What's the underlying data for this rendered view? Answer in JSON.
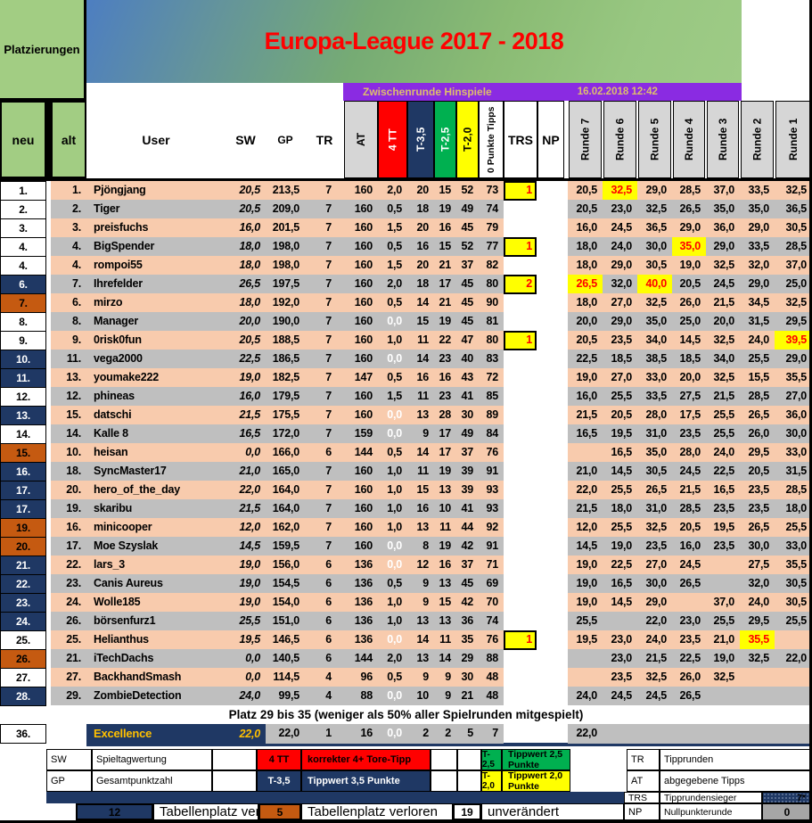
{
  "header": {
    "corner_label": "Platzierungen",
    "title": "Europa-League 2017 - 2018",
    "round_label": "Zwischenrunde Hinspiele",
    "timestamp": "16.02.2018 12:42"
  },
  "columns": {
    "neu": "neu",
    "alt": "alt",
    "user": "User",
    "sw": "SW",
    "gp": "GP",
    "tr": "TR",
    "at": "AT",
    "tt4": "4 TT",
    "t35": "T-3,5",
    "t25": "T-2,5",
    "t20": "T-2,0",
    "p0": "0 Punkte Tipps",
    "trs": "TRS",
    "np": "NP",
    "runden": [
      "Runde 7",
      "Runde 6",
      "Runde 5",
      "Runde 4",
      "Runde 3",
      "Runde 2",
      "Runde 1"
    ]
  },
  "table": {
    "rows": [
      {
        "neu": "1.",
        "move": "same",
        "alt": "1.",
        "user": "Pjöngjang",
        "sw": "20,5",
        "gp": "213,5",
        "tr": "7",
        "at": "160",
        "tt4": "2,0",
        "tt4_white": false,
        "t35": "20",
        "t25": "15",
        "t20": "52",
        "p0": "73",
        "trs": "1",
        "runden": [
          "20,5",
          "32,5",
          "29,0",
          "28,5",
          "37,0",
          "33,5",
          "32,5"
        ],
        "hl": [
          1
        ]
      },
      {
        "neu": "2.",
        "move": "same",
        "alt": "2.",
        "user": "Tiger",
        "sw": "20,5",
        "gp": "209,0",
        "tr": "7",
        "at": "160",
        "tt4": "0,5",
        "tt4_white": false,
        "t35": "18",
        "t25": "19",
        "t20": "49",
        "p0": "74",
        "trs": "",
        "runden": [
          "20,5",
          "23,0",
          "32,5",
          "26,5",
          "35,0",
          "35,0",
          "36,5"
        ],
        "hl": []
      },
      {
        "neu": "3.",
        "move": "same",
        "alt": "3.",
        "user": "preisfuchs",
        "sw": "16,0",
        "gp": "201,5",
        "tr": "7",
        "at": "160",
        "tt4": "1,5",
        "tt4_white": false,
        "t35": "20",
        "t25": "16",
        "t20": "45",
        "p0": "79",
        "trs": "",
        "runden": [
          "16,0",
          "24,5",
          "36,5",
          "29,0",
          "36,0",
          "29,0",
          "30,5"
        ],
        "hl": []
      },
      {
        "neu": "4.",
        "move": "same",
        "alt": "4.",
        "user": "BigSpender",
        "sw": "18,0",
        "gp": "198,0",
        "tr": "7",
        "at": "160",
        "tt4": "0,5",
        "tt4_white": false,
        "t35": "16",
        "t25": "15",
        "t20": "52",
        "p0": "77",
        "trs": "1",
        "runden": [
          "18,0",
          "24,0",
          "30,0",
          "35,0",
          "29,0",
          "33,5",
          "28,5"
        ],
        "hl": [
          3
        ]
      },
      {
        "neu": "4.",
        "move": "same",
        "alt": "4.",
        "user": "rompoi55",
        "sw": "18,0",
        "gp": "198,0",
        "tr": "7",
        "at": "160",
        "tt4": "1,5",
        "tt4_white": false,
        "t35": "20",
        "t25": "21",
        "t20": "37",
        "p0": "82",
        "trs": "",
        "runden": [
          "18,0",
          "29,0",
          "30,5",
          "19,0",
          "32,5",
          "32,0",
          "37,0"
        ],
        "hl": []
      },
      {
        "neu": "6.",
        "move": "up",
        "alt": "7.",
        "user": "Ihrefelder",
        "sw": "26,5",
        "gp": "197,5",
        "tr": "7",
        "at": "160",
        "tt4": "2,0",
        "tt4_white": false,
        "t35": "18",
        "t25": "17",
        "t20": "45",
        "p0": "80",
        "trs": "2",
        "runden": [
          "26,5",
          "32,0",
          "40,0",
          "20,5",
          "24,5",
          "29,0",
          "25,0"
        ],
        "hl": [
          0,
          2
        ]
      },
      {
        "neu": "7.",
        "move": "down",
        "alt": "6.",
        "user": "mirzo",
        "sw": "18,0",
        "gp": "192,0",
        "tr": "7",
        "at": "160",
        "tt4": "0,5",
        "tt4_white": false,
        "t35": "14",
        "t25": "21",
        "t20": "45",
        "p0": "90",
        "trs": "",
        "runden": [
          "18,0",
          "27,0",
          "32,5",
          "26,0",
          "21,5",
          "34,5",
          "32,5"
        ],
        "hl": []
      },
      {
        "neu": "8.",
        "move": "same",
        "alt": "8.",
        "user": "Manager",
        "sw": "20,0",
        "gp": "190,0",
        "tr": "7",
        "at": "160",
        "tt4": "0,0",
        "tt4_white": true,
        "t35": "15",
        "t25": "19",
        "t20": "45",
        "p0": "81",
        "trs": "",
        "runden": [
          "20,0",
          "29,0",
          "35,0",
          "25,0",
          "20,0",
          "31,5",
          "29,5"
        ],
        "hl": []
      },
      {
        "neu": "9.",
        "move": "same",
        "alt": "9.",
        "user": "0risk0fun",
        "sw": "20,5",
        "gp": "188,5",
        "tr": "7",
        "at": "160",
        "tt4": "1,0",
        "tt4_white": false,
        "t35": "11",
        "t25": "22",
        "t20": "47",
        "p0": "80",
        "trs": "1",
        "runden": [
          "20,5",
          "23,5",
          "34,0",
          "14,5",
          "32,5",
          "24,0",
          "39,5"
        ],
        "hl": [
          6
        ]
      },
      {
        "neu": "10.",
        "move": "up",
        "alt": "11.",
        "user": "vega2000",
        "sw": "22,5",
        "gp": "186,5",
        "tr": "7",
        "at": "160",
        "tt4": "0,0",
        "tt4_white": true,
        "t35": "14",
        "t25": "23",
        "t20": "40",
        "p0": "83",
        "trs": "",
        "runden": [
          "22,5",
          "18,5",
          "38,5",
          "18,5",
          "34,0",
          "25,5",
          "29,0"
        ],
        "hl": []
      },
      {
        "neu": "11.",
        "move": "up",
        "alt": "13.",
        "user": "youmake222",
        "sw": "19,0",
        "gp": "182,5",
        "tr": "7",
        "at": "147",
        "tt4": "0,5",
        "tt4_white": false,
        "t35": "16",
        "t25": "16",
        "t20": "43",
        "p0": "72",
        "trs": "",
        "runden": [
          "19,0",
          "27,0",
          "33,0",
          "20,0",
          "32,5",
          "15,5",
          "35,5"
        ],
        "hl": []
      },
      {
        "neu": "12.",
        "move": "same",
        "alt": "12.",
        "user": "phineas",
        "sw": "16,0",
        "gp": "179,5",
        "tr": "7",
        "at": "160",
        "tt4": "1,5",
        "tt4_white": false,
        "t35": "11",
        "t25": "23",
        "t20": "41",
        "p0": "85",
        "trs": "",
        "runden": [
          "16,0",
          "25,5",
          "33,5",
          "27,5",
          "21,5",
          "28,5",
          "27,0"
        ],
        "hl": []
      },
      {
        "neu": "13.",
        "move": "up",
        "alt": "15.",
        "user": "datschi",
        "sw": "21,5",
        "gp": "175,5",
        "tr": "7",
        "at": "160",
        "tt4": "0,0",
        "tt4_white": true,
        "t35": "13",
        "t25": "28",
        "t20": "30",
        "p0": "89",
        "trs": "",
        "runden": [
          "21,5",
          "20,5",
          "28,0",
          "17,5",
          "25,5",
          "26,5",
          "36,0"
        ],
        "hl": []
      },
      {
        "neu": "14.",
        "move": "same",
        "alt": "14.",
        "user": "Kalle 8",
        "sw": "16,5",
        "gp": "172,0",
        "tr": "7",
        "at": "159",
        "tt4": "0,0",
        "tt4_white": true,
        "t35": "9",
        "t25": "17",
        "t20": "49",
        "p0": "84",
        "trs": "",
        "runden": [
          "16,5",
          "19,5",
          "31,0",
          "23,5",
          "25,5",
          "26,0",
          "30,0"
        ],
        "hl": []
      },
      {
        "neu": "15.",
        "move": "down",
        "alt": "10.",
        "user": "heisan",
        "sw": "0,0",
        "gp": "166,0",
        "tr": "6",
        "at": "144",
        "tt4": "0,5",
        "tt4_white": false,
        "t35": "14",
        "t25": "17",
        "t20": "37",
        "p0": "76",
        "trs": "",
        "runden": [
          "",
          "16,5",
          "35,0",
          "28,0",
          "24,0",
          "29,5",
          "33,0"
        ],
        "hl": []
      },
      {
        "neu": "16.",
        "move": "up",
        "alt": "18.",
        "user": "SyncMaster17",
        "sw": "21,0",
        "gp": "165,0",
        "tr": "7",
        "at": "160",
        "tt4": "1,0",
        "tt4_white": false,
        "t35": "11",
        "t25": "19",
        "t20": "39",
        "p0": "91",
        "trs": "",
        "runden": [
          "21,0",
          "14,5",
          "30,5",
          "24,5",
          "22,5",
          "20,5",
          "31,5"
        ],
        "hl": []
      },
      {
        "neu": "17.",
        "move": "up",
        "alt": "20.",
        "user": "hero_of_the_day",
        "sw": "22,0",
        "gp": "164,0",
        "tr": "7",
        "at": "160",
        "tt4": "1,0",
        "tt4_white": false,
        "t35": "15",
        "t25": "13",
        "t20": "39",
        "p0": "93",
        "trs": "",
        "runden": [
          "22,0",
          "25,5",
          "26,5",
          "21,5",
          "16,5",
          "23,5",
          "28,5"
        ],
        "hl": []
      },
      {
        "neu": "17.",
        "move": "up",
        "alt": "19.",
        "user": "skaribu",
        "sw": "21,5",
        "gp": "164,0",
        "tr": "7",
        "at": "160",
        "tt4": "1,0",
        "tt4_white": false,
        "t35": "16",
        "t25": "10",
        "t20": "41",
        "p0": "93",
        "trs": "",
        "runden": [
          "21,5",
          "18,0",
          "31,0",
          "28,5",
          "23,5",
          "23,5",
          "18,0"
        ],
        "hl": []
      },
      {
        "neu": "19.",
        "move": "down",
        "alt": "16.",
        "user": "minicooper",
        "sw": "12,0",
        "gp": "162,0",
        "tr": "7",
        "at": "160",
        "tt4": "1,0",
        "tt4_white": false,
        "t35": "13",
        "t25": "11",
        "t20": "44",
        "p0": "92",
        "trs": "",
        "runden": [
          "12,0",
          "25,5",
          "32,5",
          "20,5",
          "19,5",
          "26,5",
          "25,5"
        ],
        "hl": []
      },
      {
        "neu": "20.",
        "move": "down",
        "alt": "17.",
        "user": "Moe Szyslak",
        "sw": "14,5",
        "gp": "159,5",
        "tr": "7",
        "at": "160",
        "tt4": "0,0",
        "tt4_white": true,
        "t35": "8",
        "t25": "19",
        "t20": "42",
        "p0": "91",
        "trs": "",
        "runden": [
          "14,5",
          "19,0",
          "23,5",
          "16,0",
          "23,5",
          "30,0",
          "33,0"
        ],
        "hl": []
      },
      {
        "neu": "21.",
        "move": "up",
        "alt": "22.",
        "user": "lars_3",
        "sw": "19,0",
        "gp": "156,0",
        "tr": "6",
        "at": "136",
        "tt4": "0,0",
        "tt4_white": true,
        "t35": "12",
        "t25": "16",
        "t20": "37",
        "p0": "71",
        "trs": "",
        "runden": [
          "19,0",
          "22,5",
          "27,0",
          "24,5",
          "",
          "27,5",
          "35,5"
        ],
        "hl": []
      },
      {
        "neu": "22.",
        "move": "up",
        "alt": "23.",
        "user": "Canis Aureus",
        "sw": "19,0",
        "gp": "154,5",
        "tr": "6",
        "at": "136",
        "tt4": "0,5",
        "tt4_white": false,
        "t35": "9",
        "t25": "13",
        "t20": "45",
        "p0": "69",
        "trs": "",
        "runden": [
          "19,0",
          "16,5",
          "30,0",
          "26,5",
          "",
          "32,0",
          "30,5"
        ],
        "hl": []
      },
      {
        "neu": "23.",
        "move": "up",
        "alt": "24.",
        "user": "Wolle185",
        "sw": "19,0",
        "gp": "154,0",
        "tr": "6",
        "at": "136",
        "tt4": "1,0",
        "tt4_white": false,
        "t35": "9",
        "t25": "15",
        "t20": "42",
        "p0": "70",
        "trs": "",
        "runden": [
          "19,0",
          "14,5",
          "29,0",
          "",
          "37,0",
          "24,0",
          "30,5"
        ],
        "hl": []
      },
      {
        "neu": "24.",
        "move": "up",
        "alt": "26.",
        "user": "börsenfurz1",
        "sw": "25,5",
        "gp": "151,0",
        "tr": "6",
        "at": "136",
        "tt4": "1,0",
        "tt4_white": false,
        "t35": "13",
        "t25": "13",
        "t20": "36",
        "p0": "74",
        "trs": "",
        "runden": [
          "25,5",
          "",
          "22,0",
          "23,0",
          "25,5",
          "29,5",
          "25,5"
        ],
        "hl": []
      },
      {
        "neu": "25.",
        "move": "same",
        "alt": "25.",
        "user": "Helianthus",
        "sw": "19,5",
        "gp": "146,5",
        "tr": "6",
        "at": "136",
        "tt4": "0,0",
        "tt4_white": true,
        "t35": "14",
        "t25": "11",
        "t20": "35",
        "p0": "76",
        "trs": "1",
        "runden": [
          "19,5",
          "23,0",
          "24,0",
          "23,5",
          "21,0",
          "35,5",
          ""
        ],
        "hl": [
          5
        ]
      },
      {
        "neu": "26.",
        "move": "down",
        "alt": "21.",
        "user": "iTechDachs",
        "sw": "0,0",
        "gp": "140,5",
        "tr": "6",
        "at": "144",
        "tt4": "2,0",
        "tt4_white": false,
        "t35": "13",
        "t25": "14",
        "t20": "29",
        "p0": "88",
        "trs": "",
        "runden": [
          "",
          "23,0",
          "21,5",
          "22,5",
          "19,0",
          "32,5",
          "22,0"
        ],
        "hl": []
      },
      {
        "neu": "27.",
        "move": "same",
        "alt": "27.",
        "user": "BackhandSmash",
        "sw": "0,0",
        "gp": "114,5",
        "tr": "4",
        "at": "96",
        "tt4": "0,5",
        "tt4_white": false,
        "t35": "9",
        "t25": "9",
        "t20": "30",
        "p0": "48",
        "trs": "",
        "runden": [
          "",
          "23,5",
          "32,5",
          "26,0",
          "32,5",
          "",
          ""
        ],
        "hl": []
      },
      {
        "neu": "28.",
        "move": "up",
        "alt": "29.",
        "user": "ZombieDetection",
        "sw": "24,0",
        "gp": "99,5",
        "tr": "4",
        "at": "88",
        "tt4": "0,0",
        "tt4_white": true,
        "t35": "10",
        "t25": "9",
        "t20": "21",
        "p0": "48",
        "trs": "",
        "runden": [
          "24,0",
          "24,5",
          "24,5",
          "26,5",
          "",
          "",
          ""
        ],
        "hl": []
      }
    ]
  },
  "separator_note": "Platz 29 bis 35 (weniger als 50% aller Spielrunden mitgespielt)",
  "row36": {
    "neu": "36.",
    "user": "Excellence",
    "sw": "22,0",
    "gp": "22,0",
    "tr": "1",
    "at": "16",
    "tt4": "0,0",
    "t35": "2",
    "t25": "2",
    "t20": "5",
    "p0": "7",
    "runden": [
      "22,0",
      "",
      "",
      "",
      "",
      "",
      ""
    ]
  },
  "legend": {
    "sw": {
      "abbr": "SW",
      "desc": "Spieltagwertung"
    },
    "gp": {
      "abbr": "GP",
      "desc": "Gesamtpunktzahl"
    },
    "tt4": {
      "abbr": "4 TT",
      "desc": "korrekter 4+ Tore-Tipp"
    },
    "t35": {
      "abbr": "T-3,5",
      "desc": "Tippwert 3,5 Punkte"
    },
    "t25": {
      "abbr": "T-2,5",
      "desc": "Tippwert 2,5 Punkte"
    },
    "t20": {
      "abbr": "T-2,0",
      "desc": "Tippwert 2,0 Punkte"
    },
    "tr": {
      "abbr": "TR",
      "desc": "Tipprunden"
    },
    "at": {
      "abbr": "AT",
      "desc": "abgegebene Tipps"
    },
    "trs": {
      "abbr": "TRS",
      "desc": "Tipprundensieger",
      "badge": "7*"
    },
    "np": {
      "abbr": "NP",
      "desc": "Nullpunkterunde",
      "badge": "0"
    }
  },
  "movement": {
    "improved": {
      "count": "12",
      "label": "Tabellenplatz verbessert"
    },
    "lost": {
      "count": "5",
      "label": "Tabellenplatz verloren"
    },
    "unchanged": {
      "count": "19",
      "label": "unverändert"
    }
  },
  "colors": {
    "header_green": "#A2CD83",
    "banner_purple": "#8A2BE2",
    "stripe_peach": "#F8CBAD",
    "stripe_gray": "#BFBFBF",
    "rank_up_navy": "#1F3864",
    "rank_down_orange": "#C55A11",
    "highlight_yellow": "#FFFF00",
    "highlight_red": "#FF0000",
    "legend_green": "#00B050",
    "excellence_gold": "#FFC000",
    "title_red": "#FF0000"
  }
}
